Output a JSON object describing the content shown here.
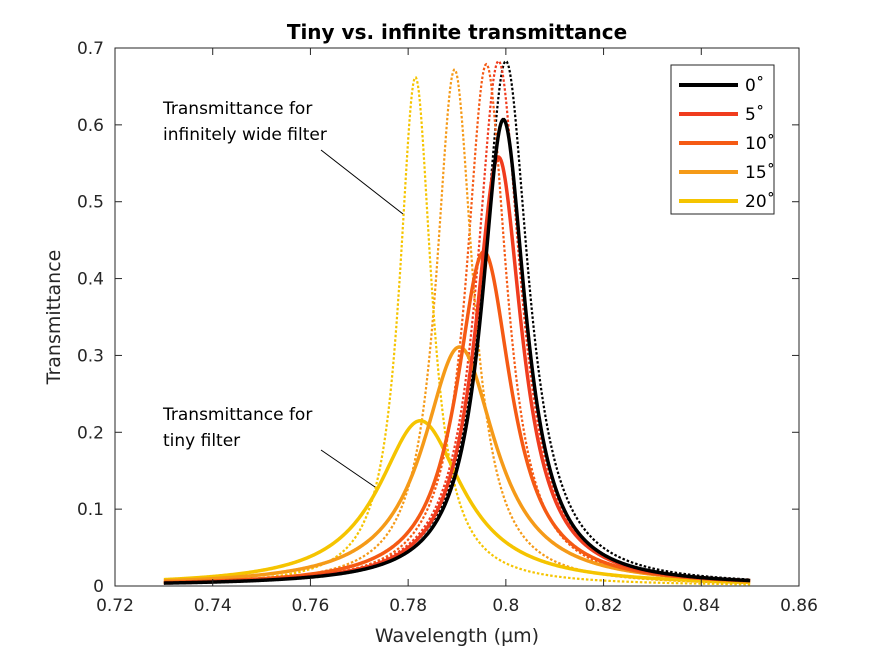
{
  "chart_data": {
    "type": "line",
    "title": "Tiny vs. infinite transmittance",
    "xlabel": "Wavelength (µm)",
    "ylabel": "Transmittance",
    "xlim": [
      0.72,
      0.86
    ],
    "ylim": [
      0,
      0.7
    ],
    "x_ticks": [
      "0.72",
      "0.74",
      "0.76",
      "0.78",
      "0.8",
      "0.82",
      "0.84",
      "0.86"
    ],
    "y_ticks": [
      "0",
      "0.1",
      "0.2",
      "0.3",
      "0.4",
      "0.5",
      "0.6",
      "0.7"
    ],
    "grid": false,
    "legend_position": "top-right",
    "x_range_data": [
      0.73,
      0.85
    ],
    "series": [
      {
        "name": "0˚",
        "color": "#000000",
        "tiny": {
          "center": 0.7995,
          "peak": 0.607,
          "hw": 0.0055
        },
        "infinite": {
          "center": 0.8,
          "peak": 0.683,
          "hw": 0.0056
        }
      },
      {
        "name": "5˚",
        "color": "#f03c1e",
        "tiny": {
          "center": 0.7985,
          "peak": 0.558,
          "hw": 0.0058
        },
        "infinite": {
          "center": 0.7985,
          "peak": 0.683,
          "hw": 0.0054
        }
      },
      {
        "name": "10˚",
        "color": "#f55a14",
        "tiny": {
          "center": 0.7955,
          "peak": 0.435,
          "hw": 0.0068
        },
        "infinite": {
          "center": 0.796,
          "peak": 0.679,
          "hw": 0.005
        }
      },
      {
        "name": "15˚",
        "color": "#f59a18",
        "tiny": {
          "center": 0.7905,
          "peak": 0.311,
          "hw": 0.009
        },
        "infinite": {
          "center": 0.7895,
          "peak": 0.672,
          "hw": 0.0046
        }
      },
      {
        "name": "20˚",
        "color": "#f5c400",
        "tiny": {
          "center": 0.7825,
          "peak": 0.215,
          "hw": 0.0105
        },
        "infinite": {
          "center": 0.7815,
          "peak": 0.662,
          "hw": 0.004
        }
      }
    ],
    "annotations": [
      {
        "lines": [
          "Transmittance for",
          "infinitely wide filter"
        ]
      },
      {
        "lines": [
          "Transmittance for",
          "tiny filter"
        ]
      }
    ]
  }
}
